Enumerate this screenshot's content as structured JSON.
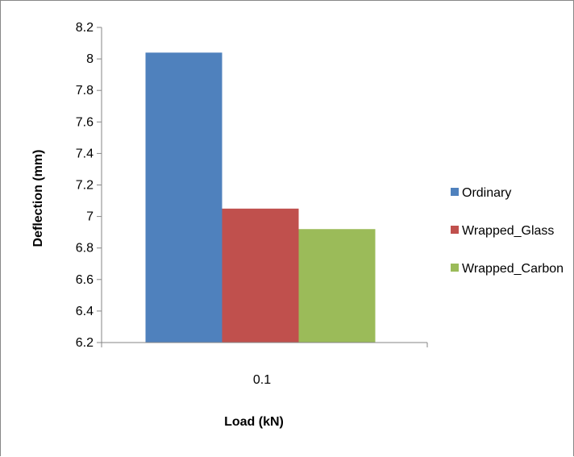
{
  "chart_data": {
    "type": "bar",
    "title": "",
    "categories": [
      "0.1"
    ],
    "series": [
      {
        "name": "Ordinary",
        "values": [
          8.04
        ],
        "color": "#4F81BD"
      },
      {
        "name": "Wrapped_Glass",
        "values": [
          7.05
        ],
        "color": "#C0504D"
      },
      {
        "name": "Wrapped_Carbon",
        "values": [
          6.92
        ],
        "color": "#9BBB59"
      }
    ],
    "xlabel": "Load (kN)",
    "ylabel": "Deflection (mm)",
    "ylim": [
      6.2,
      8.2
    ],
    "yticks": [
      "6.2",
      "6.4",
      "6.6",
      "6.8",
      "7",
      "7.2",
      "7.4",
      "7.6",
      "7.8",
      "8",
      "8.2"
    ],
    "grid": false,
    "legend_position": "right"
  }
}
